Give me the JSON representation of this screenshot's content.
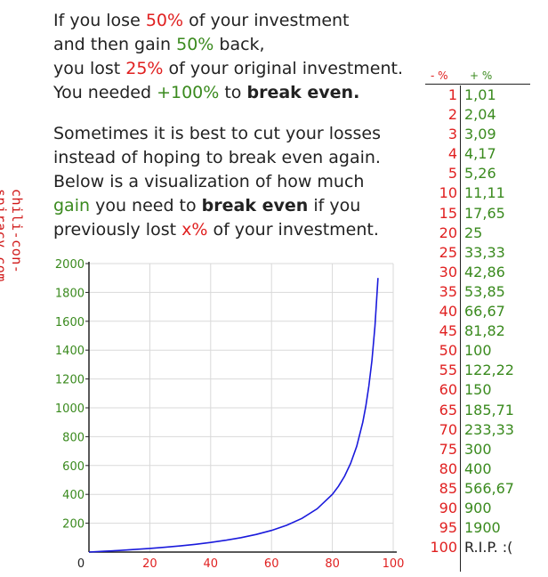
{
  "intro": {
    "l1a": "If you lose ",
    "l1b": "50%",
    "l1c": " of your investment",
    "l2a": "and then gain ",
    "l2b": "50%",
    "l2c": " back,",
    "l3a": "you lost ",
    "l3b": "25%",
    "l3c": " of your original investment.",
    "l4a": "You needed ",
    "l4b": "+100%",
    "l4c": " to ",
    "l4d": "break even."
  },
  "para2": {
    "l1": "Sometimes it is best to cut your losses",
    "l2": "instead of hoping to break even again.",
    "l3": "Below is a visualization of how much",
    "l4a": "gain",
    "l4b": " you need to ",
    "l4c": "break even",
    "l4d": " if you",
    "l5a": "previously lost ",
    "l5b": "x%",
    "l5c": " of your investment."
  },
  "watermark": "chili-con-spiracy.com",
  "table": {
    "header_loss": "- %",
    "header_gain": "+ %",
    "rows": [
      {
        "loss": "1",
        "gain": "1,01"
      },
      {
        "loss": "2",
        "gain": "2,04"
      },
      {
        "loss": "3",
        "gain": "3,09"
      },
      {
        "loss": "4",
        "gain": "4,17"
      },
      {
        "loss": "5",
        "gain": "5,26"
      },
      {
        "loss": "10",
        "gain": "11,11"
      },
      {
        "loss": "15",
        "gain": "17,65"
      },
      {
        "loss": "20",
        "gain": "25"
      },
      {
        "loss": "25",
        "gain": "33,33"
      },
      {
        "loss": "30",
        "gain": "42,86"
      },
      {
        "loss": "35",
        "gain": "53,85"
      },
      {
        "loss": "40",
        "gain": "66,67"
      },
      {
        "loss": "45",
        "gain": "81,82"
      },
      {
        "loss": "50",
        "gain": "100"
      },
      {
        "loss": "55",
        "gain": "122,22"
      },
      {
        "loss": "60",
        "gain": "150"
      },
      {
        "loss": "65",
        "gain": "185,71"
      },
      {
        "loss": "70",
        "gain": "233,33"
      },
      {
        "loss": "75",
        "gain": "300"
      },
      {
        "loss": "80",
        "gain": "400"
      },
      {
        "loss": "85",
        "gain": "566,67"
      },
      {
        "loss": "90",
        "gain": "900"
      },
      {
        "loss": "95",
        "gain": "1900"
      },
      {
        "loss": "100",
        "gain": "R.I.P. :("
      }
    ]
  },
  "chart_data": {
    "type": "line",
    "title": "",
    "xlabel": "",
    "ylabel": "",
    "xlim": [
      0,
      100
    ],
    "ylim": [
      0,
      2000
    ],
    "xticks": [
      "0",
      "20",
      "40",
      "60",
      "80",
      "100"
    ],
    "yticks": [
      "200",
      "400",
      "600",
      "800",
      "1000",
      "1200",
      "1400",
      "1600",
      "1800",
      "2000"
    ],
    "grid": true,
    "series": [
      {
        "color": "#1a1adc",
        "x": [
          0,
          5,
          10,
          15,
          20,
          25,
          30,
          35,
          40,
          45,
          50,
          55,
          60,
          65,
          70,
          75,
          80,
          82,
          84,
          86,
          88,
          90,
          91,
          92,
          93,
          94,
          95
        ],
        "y": [
          0,
          5.26,
          11.11,
          17.65,
          25,
          33.33,
          42.86,
          53.85,
          66.67,
          81.82,
          100,
          122.22,
          150,
          185.71,
          233.33,
          300,
          400,
          455.56,
          525,
          614.29,
          733.33,
          900,
          1011.11,
          1150,
          1328.57,
          1566.67,
          1900
        ]
      }
    ],
    "colors": {
      "axis_x_labels": "#e02020",
      "axis_y_labels": "#3a8a1e",
      "grid": "#d9d9d9"
    }
  }
}
